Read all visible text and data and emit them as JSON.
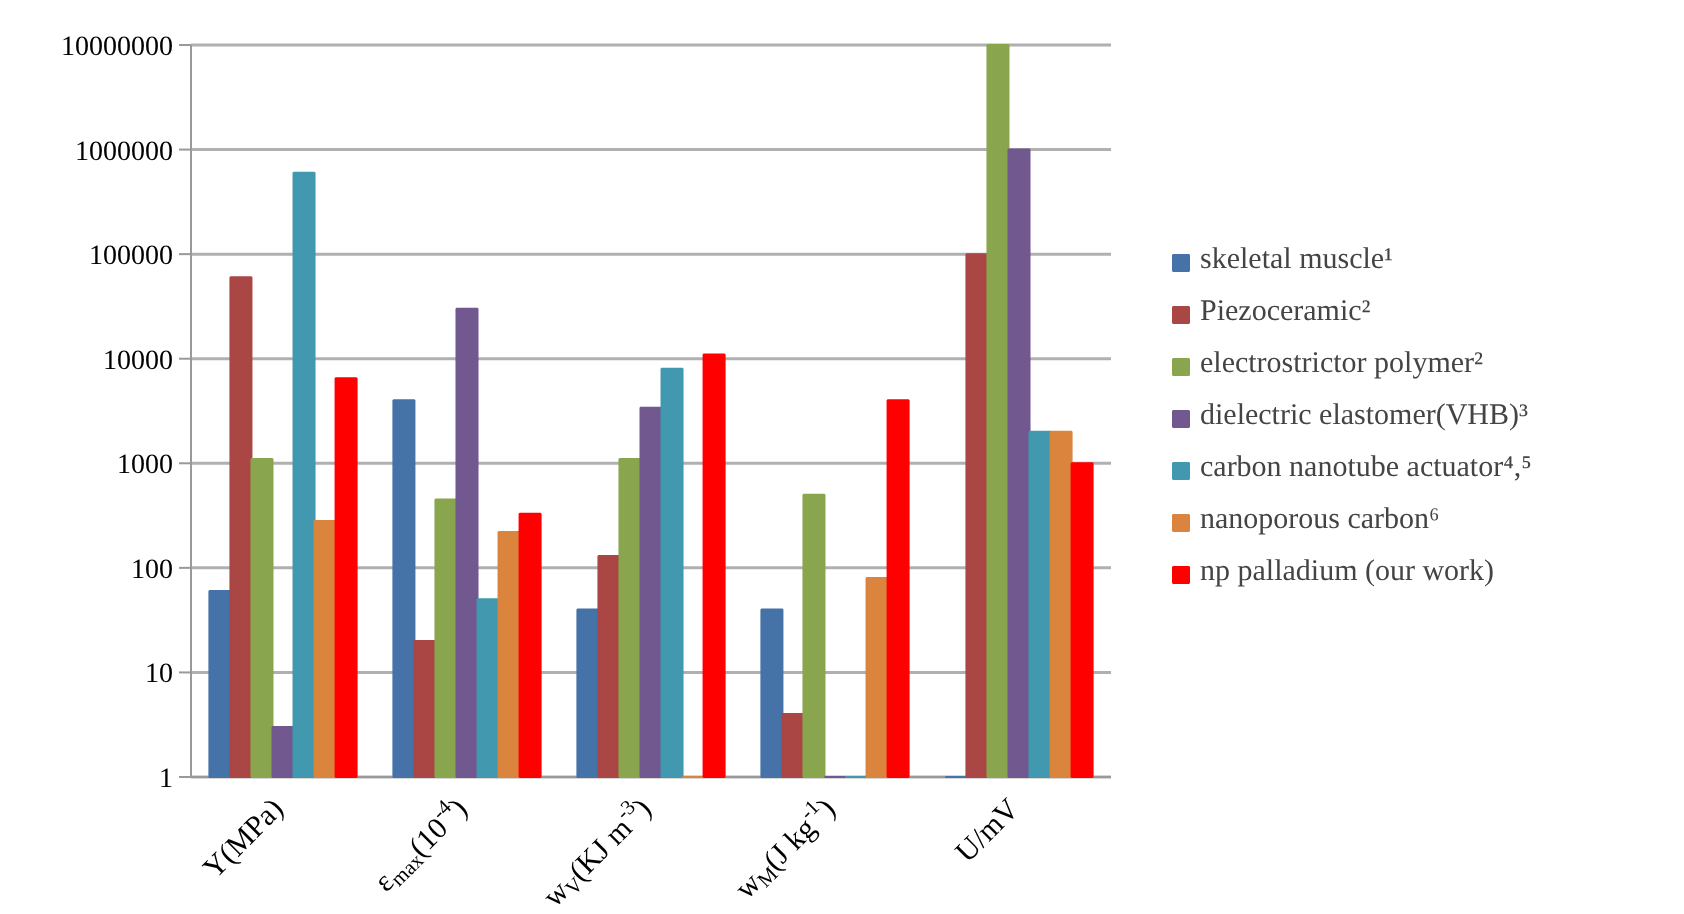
{
  "chart_data": {
    "type": "bar",
    "log": true,
    "grid": "y",
    "legend": "right",
    "categories": [
      "Y(MPa)",
      "ε$_{max}$(10$^{-4}$)",
      "w$_{V}$(KJ m$^{-3}$)",
      "w$_{M}$(J kg$^{-1}$)",
      "U/mV"
    ],
    "ylim": [
      1,
      10000000
    ],
    "yticks": [
      1,
      10,
      100,
      1000,
      10000,
      100000,
      1000000,
      10000000
    ],
    "series": [
      {
        "name": "skeletal muscle¹",
        "color": "#4572a7",
        "values": [
          60,
          4000,
          40,
          40,
          1
        ]
      },
      {
        "name": "Piezoceramic²",
        "color": "#aa4643",
        "values": [
          60000,
          20,
          130,
          4,
          100000
        ]
      },
      {
        "name": "electrostrictor polymer²",
        "color": "#89a54e",
        "values": [
          1100,
          450,
          1100,
          500,
          10000000
        ]
      },
      {
        "name": "dielectric elastomer(VHB)³",
        "color": "#71588f",
        "values": [
          3,
          30000,
          3400,
          1,
          1000000
        ]
      },
      {
        "name": "carbon nanotube actuator⁴,⁵",
        "color": "#4198af",
        "values": [
          600000,
          50,
          8000,
          1,
          2000
        ]
      },
      {
        "name": "nanoporous carbon⁶",
        "color": "#db843d",
        "values": [
          280,
          220,
          1,
          80,
          2000
        ]
      },
      {
        "name": "np palladium (our work)",
        "color": "#ff0000",
        "values": [
          6500,
          330,
          11000,
          4000,
          1000
        ]
      }
    ]
  }
}
